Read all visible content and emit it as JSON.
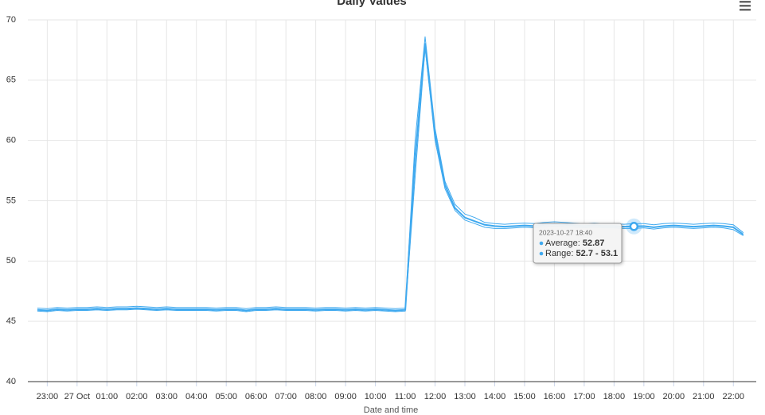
{
  "chart_data": {
    "type": "line",
    "title": "Daily Values",
    "x_label": "Date and time",
    "x": [
      "2023-10-26 22:40",
      "2023-10-26 23:00",
      "2023-10-26 23:20",
      "2023-10-26 23:40",
      "2023-10-27 00:00",
      "2023-10-27 00:20",
      "2023-10-27 00:40",
      "2023-10-27 01:00",
      "2023-10-27 01:20",
      "2023-10-27 01:40",
      "2023-10-27 02:00",
      "2023-10-27 02:20",
      "2023-10-27 02:40",
      "2023-10-27 03:00",
      "2023-10-27 03:20",
      "2023-10-27 03:40",
      "2023-10-27 04:00",
      "2023-10-27 04:20",
      "2023-10-27 04:40",
      "2023-10-27 05:00",
      "2023-10-27 05:20",
      "2023-10-27 05:40",
      "2023-10-27 06:00",
      "2023-10-27 06:20",
      "2023-10-27 06:40",
      "2023-10-27 07:00",
      "2023-10-27 07:20",
      "2023-10-27 07:40",
      "2023-10-27 08:00",
      "2023-10-27 08:20",
      "2023-10-27 08:40",
      "2023-10-27 09:00",
      "2023-10-27 09:20",
      "2023-10-27 09:40",
      "2023-10-27 10:00",
      "2023-10-27 10:20",
      "2023-10-27 10:40",
      "2023-10-27 11:00",
      "2023-10-27 11:20",
      "2023-10-27 11:40",
      "2023-10-27 12:00",
      "2023-10-27 12:20",
      "2023-10-27 12:40",
      "2023-10-27 13:00",
      "2023-10-27 13:20",
      "2023-10-27 13:40",
      "2023-10-27 14:00",
      "2023-10-27 14:20",
      "2023-10-27 14:40",
      "2023-10-27 15:00",
      "2023-10-27 15:20",
      "2023-10-27 15:40",
      "2023-10-27 16:00",
      "2023-10-27 16:20",
      "2023-10-27 16:40",
      "2023-10-27 17:00",
      "2023-10-27 17:20",
      "2023-10-27 17:40",
      "2023-10-27 18:00",
      "2023-10-27 18:20",
      "2023-10-27 18:40",
      "2023-10-27 19:00",
      "2023-10-27 19:20",
      "2023-10-27 19:40",
      "2023-10-27 20:00",
      "2023-10-27 20:20",
      "2023-10-27 20:40",
      "2023-10-27 21:00",
      "2023-10-27 21:20",
      "2023-10-27 21:40",
      "2023-10-27 22:00",
      "2023-10-27 22:20"
    ],
    "series": [
      {
        "name": "Average",
        "color": "#3fa9ef",
        "values": [
          45.95,
          45.9,
          46.0,
          45.95,
          46.0,
          46.0,
          46.05,
          46.0,
          46.05,
          46.05,
          46.1,
          46.05,
          46.0,
          46.05,
          46.0,
          46.0,
          46.0,
          46.0,
          45.95,
          46.0,
          46.0,
          45.9,
          46.0,
          46.0,
          46.05,
          46.0,
          46.0,
          46.0,
          45.95,
          46.0,
          46.0,
          45.95,
          46.0,
          45.95,
          46.0,
          45.95,
          45.9,
          45.95,
          58.5,
          68.0,
          60.5,
          56.3,
          54.4,
          53.6,
          53.3,
          53.0,
          52.9,
          52.85,
          52.9,
          52.95,
          52.9,
          53.0,
          53.05,
          53.0,
          52.95,
          52.9,
          52.95,
          52.9,
          52.9,
          52.85,
          52.87,
          52.9,
          52.8,
          52.9,
          52.95,
          52.9,
          52.85,
          52.9,
          52.95,
          52.9,
          52.8,
          52.2
        ]
      },
      {
        "name": "Range",
        "color": "#3fa9ef",
        "low": [
          45.85,
          45.8,
          45.9,
          45.85,
          45.9,
          45.9,
          45.95,
          45.9,
          45.95,
          45.95,
          46.0,
          45.95,
          45.9,
          45.95,
          45.9,
          45.9,
          45.9,
          45.9,
          45.85,
          45.9,
          45.9,
          45.8,
          45.9,
          45.9,
          45.95,
          45.9,
          45.9,
          45.9,
          45.85,
          45.9,
          45.9,
          45.85,
          45.9,
          45.85,
          45.9,
          45.85,
          45.8,
          45.85,
          57.0,
          67.7,
          60.0,
          56.0,
          54.2,
          53.4,
          53.1,
          52.8,
          52.7,
          52.7,
          52.75,
          52.8,
          52.75,
          52.85,
          52.9,
          52.85,
          52.8,
          52.75,
          52.8,
          52.75,
          52.75,
          52.7,
          52.7,
          52.75,
          52.65,
          52.75,
          52.8,
          52.75,
          52.7,
          52.75,
          52.8,
          52.75,
          52.6,
          52.1
        ],
        "high": [
          46.1,
          46.05,
          46.15,
          46.1,
          46.15,
          46.15,
          46.2,
          46.15,
          46.2,
          46.2,
          46.25,
          46.2,
          46.15,
          46.2,
          46.15,
          46.15,
          46.15,
          46.15,
          46.1,
          46.15,
          46.15,
          46.05,
          46.15,
          46.15,
          46.2,
          46.15,
          46.15,
          46.15,
          46.1,
          46.15,
          46.15,
          46.1,
          46.15,
          46.1,
          46.15,
          46.1,
          46.05,
          46.1,
          60.0,
          68.6,
          61.0,
          56.6,
          54.7,
          53.9,
          53.6,
          53.2,
          53.1,
          53.05,
          53.1,
          53.15,
          53.1,
          53.2,
          53.25,
          53.2,
          53.15,
          53.1,
          53.15,
          53.1,
          53.1,
          53.05,
          53.1,
          53.1,
          53.0,
          53.1,
          53.15,
          53.1,
          53.05,
          53.1,
          53.15,
          53.1,
          53.0,
          52.35
        ]
      }
    ],
    "xlim": [
      "2023-10-26 22:21",
      "2023-10-27 22:46"
    ],
    "xticks": [
      {
        "value": "2023-10-26 23:00",
        "label": "23:00"
      },
      {
        "value": "2023-10-27 00:00",
        "label": "27 Oct"
      },
      {
        "value": "2023-10-27 01:00",
        "label": "01:00"
      },
      {
        "value": "2023-10-27 02:00",
        "label": "02:00"
      },
      {
        "value": "2023-10-27 03:00",
        "label": "03:00"
      },
      {
        "value": "2023-10-27 04:00",
        "label": "04:00"
      },
      {
        "value": "2023-10-27 05:00",
        "label": "05:00"
      },
      {
        "value": "2023-10-27 06:00",
        "label": "06:00"
      },
      {
        "value": "2023-10-27 07:00",
        "label": "07:00"
      },
      {
        "value": "2023-10-27 08:00",
        "label": "08:00"
      },
      {
        "value": "2023-10-27 09:00",
        "label": "09:00"
      },
      {
        "value": "2023-10-27 10:00",
        "label": "10:00"
      },
      {
        "value": "2023-10-27 11:00",
        "label": "11:00"
      },
      {
        "value": "2023-10-27 12:00",
        "label": "12:00"
      },
      {
        "value": "2023-10-27 13:00",
        "label": "13:00"
      },
      {
        "value": "2023-10-27 14:00",
        "label": "14:00"
      },
      {
        "value": "2023-10-27 15:00",
        "label": "15:00"
      },
      {
        "value": "2023-10-27 16:00",
        "label": "16:00"
      },
      {
        "value": "2023-10-27 17:00",
        "label": "17:00"
      },
      {
        "value": "2023-10-27 18:00",
        "label": "18:00"
      },
      {
        "value": "2023-10-27 19:00",
        "label": "19:00"
      },
      {
        "value": "2023-10-27 20:00",
        "label": "20:00"
      },
      {
        "value": "2023-10-27 21:00",
        "label": "21:00"
      },
      {
        "value": "2023-10-27 22:00",
        "label": "22:00"
      }
    ],
    "ylim": [
      40,
      70
    ],
    "yticks": [
      40,
      45,
      50,
      55,
      60,
      65,
      70
    ],
    "grid": true,
    "tooltip": {
      "title": "2023-10-27 18:40",
      "index": 60,
      "average_label": "Average: ",
      "average_value": "52.87",
      "range_label": "Range: ",
      "range_value": "52.7 - 53.1"
    }
  }
}
